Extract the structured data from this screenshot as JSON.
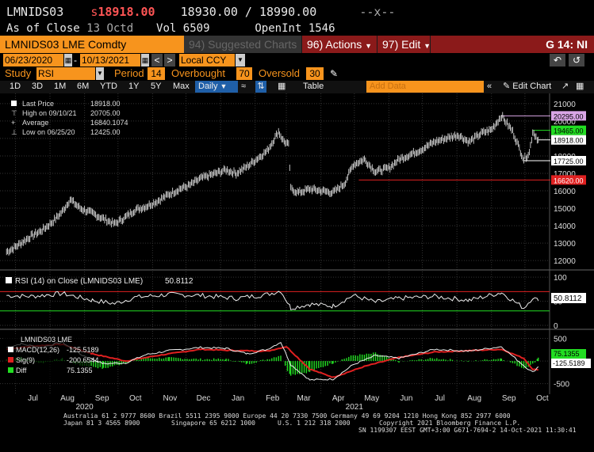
{
  "header": {
    "ticker": "LMNIDS03",
    "price_prefix": "s",
    "last_price": "18918.00",
    "bid_ask": "18930.00 / 18990.00",
    "bid_ask_marker": "--x--",
    "close_label": "As of Close",
    "close_date": "13 Octd",
    "vol_label": "Vol",
    "vol_value": "6509",
    "oi_label": "OpenInt",
    "oi_value": "1546"
  },
  "menubar": {
    "security": "LMNIDS03 LME Comdty",
    "suggested": "94) Suggested Charts",
    "actions": "96) Actions",
    "edit": "97) Edit",
    "function": "G 14: NI"
  },
  "range": {
    "start": "06/23/2020",
    "end": "10/13/2021",
    "currency": "Local CCY"
  },
  "study": {
    "label": "Study",
    "value": "RSI",
    "period_label": "Period",
    "period_value": "14",
    "overbought_label": "Overbought",
    "overbought_value": "70",
    "oversold_label": "Oversold",
    "oversold_value": "30"
  },
  "toolbar": {
    "buttons": [
      "1D",
      "3D",
      "1M",
      "6M",
      "YTD",
      "1Y",
      "5Y",
      "Max"
    ],
    "interval": "Daily",
    "table": "Table",
    "add_data_placeholder": "Add Data",
    "edit_chart": "Edit Chart"
  },
  "legend": {
    "price": [
      {
        "label": "Last Price",
        "value": "18918.00"
      },
      {
        "label": "High on 09/10/21",
        "value": "20705.00"
      },
      {
        "label": "Average",
        "value": "16840.1074"
      },
      {
        "label": "Low on 06/25/20",
        "value": "12425.00"
      }
    ],
    "rsi": {
      "label": "RSI (14) on Close (LMNIDS03 LME)",
      "value": "50.8112"
    },
    "macd_title": "LMNIDS03 LME",
    "macd": [
      {
        "label": "MACD(12,26)",
        "value": "-125.5189",
        "color": "#ffffff"
      },
      {
        "label": "Sig(9)",
        "value": "-200.6544",
        "color": "#e02020"
      },
      {
        "label": "Diff",
        "value": "75.1355",
        "color": "#22dd22"
      }
    ]
  },
  "chart_data": {
    "type": "line",
    "price_axis": {
      "ticks": [
        "21000",
        "20000",
        "19000",
        "18000",
        "17000",
        "16000",
        "15000",
        "14000",
        "13000",
        "12000"
      ],
      "range": [
        11600,
        21400
      ]
    },
    "price_markers": [
      {
        "value": "20295.00",
        "color": "#d9a6e6"
      },
      {
        "value": "19465.00",
        "color": "#22dd22"
      },
      {
        "value": "18918.00",
        "color": "#ffffff"
      },
      {
        "value": "17725.00",
        "color": "#ffffff"
      },
      {
        "value": "16620.00",
        "color": "#e02020"
      }
    ],
    "price_series": [
      [
        "2020-06-23",
        12500
      ],
      [
        "2020-06-29",
        12700
      ],
      [
        "2020-07-06",
        13000
      ],
      [
        "2020-07-15",
        13400
      ],
      [
        "2020-07-24",
        13700
      ],
      [
        "2020-08-03",
        14200
      ],
      [
        "2020-08-12",
        14800
      ],
      [
        "2020-08-19",
        15500
      ],
      [
        "2020-08-28",
        15000
      ],
      [
        "2020-09-08",
        14700
      ],
      [
        "2020-09-18",
        14400
      ],
      [
        "2020-09-28",
        14100
      ],
      [
        "2020-10-08",
        14500
      ],
      [
        "2020-10-16",
        14900
      ],
      [
        "2020-10-26",
        15100
      ],
      [
        "2020-11-05",
        15400
      ],
      [
        "2020-11-16",
        15800
      ],
      [
        "2020-11-25",
        16100
      ],
      [
        "2020-12-04",
        16300
      ],
      [
        "2020-12-14",
        16700
      ],
      [
        "2020-12-23",
        16900
      ],
      [
        "2021-01-06",
        17200
      ],
      [
        "2021-01-15",
        17000
      ],
      [
        "2021-01-25",
        17400
      ],
      [
        "2021-02-04",
        17900
      ],
      [
        "2021-02-12",
        18300
      ],
      [
        "2021-02-22",
        19400
      ],
      [
        "2021-02-26",
        18900
      ],
      [
        "2021-03-03",
        18600
      ],
      [
        "2021-03-05",
        16100
      ],
      [
        "2021-03-12",
        15900
      ],
      [
        "2021-03-22",
        16100
      ],
      [
        "2021-04-01",
        16000
      ],
      [
        "2021-04-12",
        15900
      ],
      [
        "2021-04-22",
        16400
      ],
      [
        "2021-04-30",
        17500
      ],
      [
        "2021-05-10",
        17800
      ],
      [
        "2021-05-20",
        17100
      ],
      [
        "2021-06-01",
        17300
      ],
      [
        "2021-06-10",
        17800
      ],
      [
        "2021-06-21",
        18100
      ],
      [
        "2021-07-01",
        18400
      ],
      [
        "2021-07-12",
        18800
      ],
      [
        "2021-07-22",
        19000
      ],
      [
        "2021-08-02",
        19200
      ],
      [
        "2021-08-12",
        18800
      ],
      [
        "2021-08-23",
        19300
      ],
      [
        "2021-09-01",
        19500
      ],
      [
        "2021-09-10",
        20300
      ],
      [
        "2021-09-20",
        19400
      ],
      [
        "2021-09-30",
        17800
      ],
      [
        "2021-10-05",
        18200
      ],
      [
        "2021-10-08",
        19400
      ],
      [
        "2021-10-13",
        18918
      ]
    ],
    "rsi_axis": {
      "ticks": [
        "100",
        "50",
        "0"
      ],
      "range": [
        -5,
        110
      ]
    },
    "rsi_levels": {
      "overbought": 70,
      "oversold": 30
    },
    "rsi_series": [
      [
        "2020-06-23",
        62
      ],
      [
        "2020-07-15",
        60
      ],
      [
        "2020-08-12",
        66
      ],
      [
        "2020-09-08",
        52
      ],
      [
        "2020-09-28",
        45
      ],
      [
        "2020-10-16",
        58
      ],
      [
        "2020-11-16",
        64
      ],
      [
        "2020-12-14",
        62
      ],
      [
        "2021-01-15",
        56
      ],
      [
        "2021-02-12",
        64
      ],
      [
        "2021-02-24",
        72
      ],
      [
        "2021-03-05",
        36
      ],
      [
        "2021-03-22",
        44
      ],
      [
        "2021-04-12",
        40
      ],
      [
        "2021-04-30",
        62
      ],
      [
        "2021-05-20",
        48
      ],
      [
        "2021-06-10",
        56
      ],
      [
        "2021-07-12",
        60
      ],
      [
        "2021-08-12",
        52
      ],
      [
        "2021-09-10",
        68
      ],
      [
        "2021-09-30",
        36
      ],
      [
        "2021-10-08",
        58
      ],
      [
        "2021-10-13",
        51
      ]
    ],
    "macd_axis": {
      "ticks": [
        "500",
        "0",
        "-500"
      ],
      "range": [
        -700,
        650
      ]
    },
    "macd_series": [
      [
        "2020-06-23",
        300
      ],
      [
        "2020-07-06",
        380
      ],
      [
        "2020-07-24",
        300
      ],
      [
        "2020-08-12",
        420
      ],
      [
        "2020-08-28",
        150
      ],
      [
        "2020-09-18",
        -60
      ],
      [
        "2020-10-08",
        -40
      ],
      [
        "2020-10-26",
        140
      ],
      [
        "2020-11-16",
        230
      ],
      [
        "2020-12-14",
        300
      ],
      [
        "2021-01-06",
        280
      ],
      [
        "2021-01-25",
        160
      ],
      [
        "2021-02-12",
        260
      ],
      [
        "2021-02-24",
        420
      ],
      [
        "2021-03-05",
        -80
      ],
      [
        "2021-03-22",
        -420
      ],
      [
        "2021-04-12",
        -400
      ],
      [
        "2021-04-30",
        -80
      ],
      [
        "2021-05-20",
        120
      ],
      [
        "2021-06-10",
        60
      ],
      [
        "2021-07-12",
        260
      ],
      [
        "2021-08-12",
        220
      ],
      [
        "2021-09-10",
        320
      ],
      [
        "2021-09-30",
        -100
      ],
      [
        "2021-10-08",
        -250
      ],
      [
        "2021-10-13",
        -125
      ]
    ],
    "sig_series": [
      [
        "2020-06-23",
        260
      ],
      [
        "2020-07-15",
        330
      ],
      [
        "2020-08-12",
        370
      ],
      [
        "2020-09-08",
        160
      ],
      [
        "2020-10-08",
        0
      ],
      [
        "2020-11-05",
        120
      ],
      [
        "2020-12-14",
        260
      ],
      [
        "2021-01-15",
        230
      ],
      [
        "2021-02-12",
        220
      ],
      [
        "2021-03-01",
        320
      ],
      [
        "2021-03-22",
        -180
      ],
      [
        "2021-04-12",
        -360
      ],
      [
        "2021-05-10",
        -120
      ],
      [
        "2021-06-10",
        80
      ],
      [
        "2021-07-12",
        200
      ],
      [
        "2021-08-12",
        230
      ],
      [
        "2021-09-10",
        260
      ],
      [
        "2021-09-30",
        60
      ],
      [
        "2021-10-08",
        -180
      ],
      [
        "2021-10-13",
        -200
      ]
    ],
    "x_axis": {
      "months": [
        [
          "2020-07-01",
          "Jul"
        ],
        [
          "2020-08-01",
          "Aug"
        ],
        [
          "2020-09-01",
          "Sep"
        ],
        [
          "2020-10-01",
          "Oct"
        ],
        [
          "2020-11-01",
          "Nov"
        ],
        [
          "2020-12-01",
          "Dec"
        ],
        [
          "2021-01-01",
          "Jan"
        ],
        [
          "2021-02-01",
          "Feb"
        ],
        [
          "2021-03-01",
          "Mar"
        ],
        [
          "2021-04-01",
          "Apr"
        ],
        [
          "2021-05-01",
          "May"
        ],
        [
          "2021-06-01",
          "Jun"
        ],
        [
          "2021-07-01",
          "Jul"
        ],
        [
          "2021-08-01",
          "Aug"
        ],
        [
          "2021-09-01",
          "Sep"
        ],
        [
          "2021-10-01",
          "Oct"
        ]
      ],
      "years": [
        [
          "2020-09-01",
          "2020"
        ],
        [
          "2021-05-01",
          "2021"
        ]
      ],
      "range": [
        "2020-06-20",
        "2021-10-21"
      ]
    }
  },
  "footer": {
    "line1": "Australia 61 2 9777 8600 Brazil 5511 2395 9000 Europe 44 20 7330 7500 Germany 49 69 9204 1210 Hong Kong 852 2977 6000",
    "line2a": "Japan 81 3 4565 8900",
    "line2b": "Singapore 65 6212 1000",
    "line2c": "U.S. 1 212 318 2000",
    "line2d": "Copyright 2021 Bloomberg Finance L.P.",
    "line3": "SN 1199307 EEST GMT+3:00 G671-7694-2 14-Oct-2021 11:30:41"
  }
}
